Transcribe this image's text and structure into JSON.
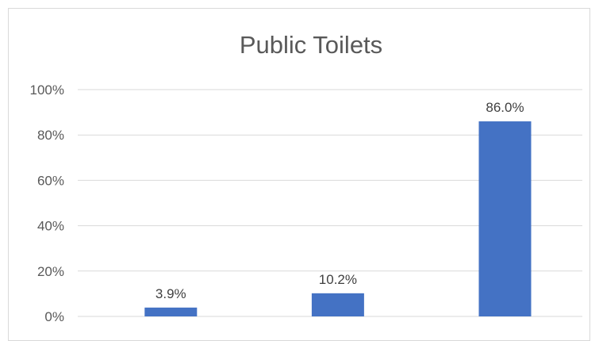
{
  "chart_data": {
    "type": "bar",
    "title": "Public Toilets",
    "categories": [
      "",
      "",
      ""
    ],
    "values": [
      3.9,
      10.2,
      86.0
    ],
    "data_labels": [
      "3.9%",
      "10.2%",
      "86.0%"
    ],
    "y_ticks": [
      "0%",
      "20%",
      "40%",
      "60%",
      "80%",
      "100%"
    ],
    "ylim": [
      0,
      100
    ],
    "xlabel": "",
    "ylabel": "",
    "grid": true,
    "legend": "none",
    "bar_color": "#4472c4"
  }
}
